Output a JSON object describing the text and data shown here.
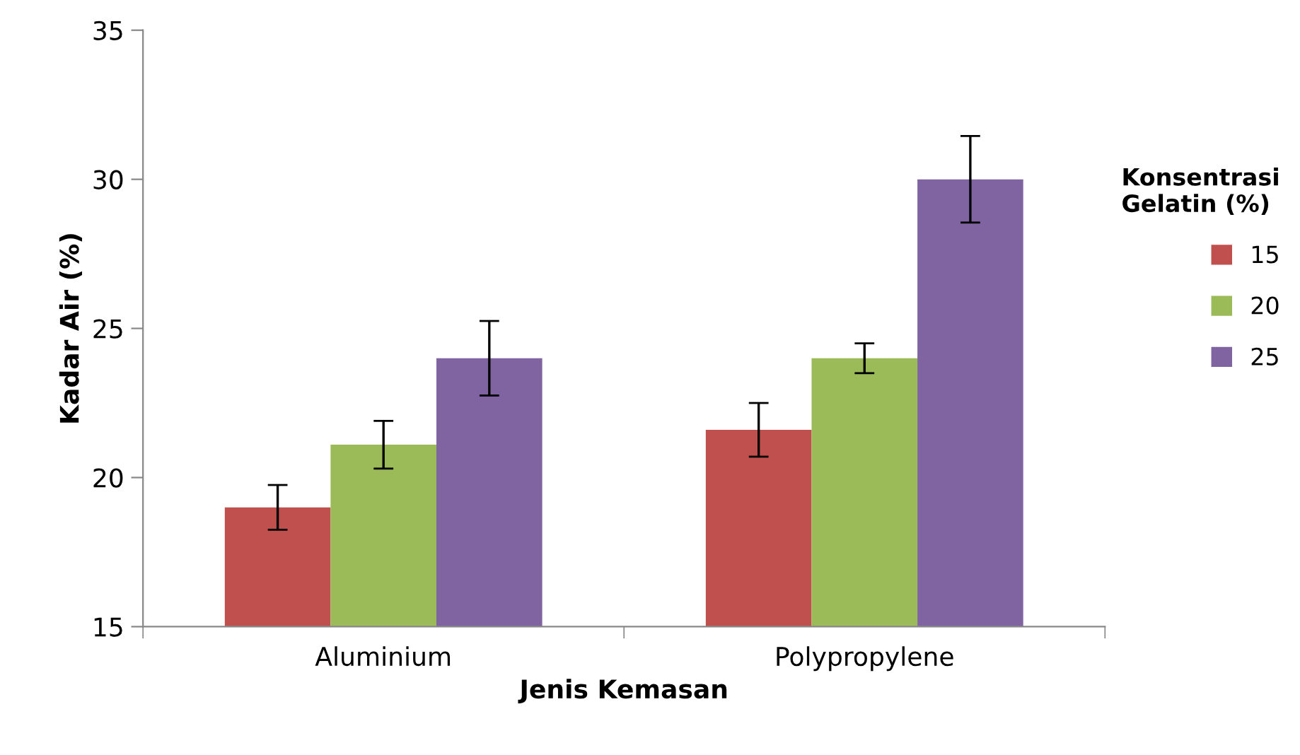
{
  "chart_data": {
    "type": "bar",
    "xlabel": "Jenis Kemasan",
    "ylabel": "Kadar Air (%)",
    "legend_title": "Konsentrasi\nGelatin (%)",
    "legend": "right",
    "grid": false,
    "categories": [
      "Aluminium",
      "Polypropylene"
    ],
    "ylim": [
      15,
      35
    ],
    "yticks": [
      15,
      20,
      25,
      30,
      35
    ],
    "series": [
      {
        "name": "15",
        "color": "#c0504d",
        "values": [
          19.0,
          21.6
        ],
        "errors": [
          0.75,
          0.9
        ]
      },
      {
        "name": "20",
        "color": "#9bbb59",
        "values": [
          21.1,
          24.0
        ],
        "errors": [
          0.8,
          0.5
        ]
      },
      {
        "name": "25",
        "color": "#8064a2",
        "values": [
          24.0,
          30.0
        ],
        "errors": [
          1.25,
          1.45
        ]
      }
    ]
  }
}
